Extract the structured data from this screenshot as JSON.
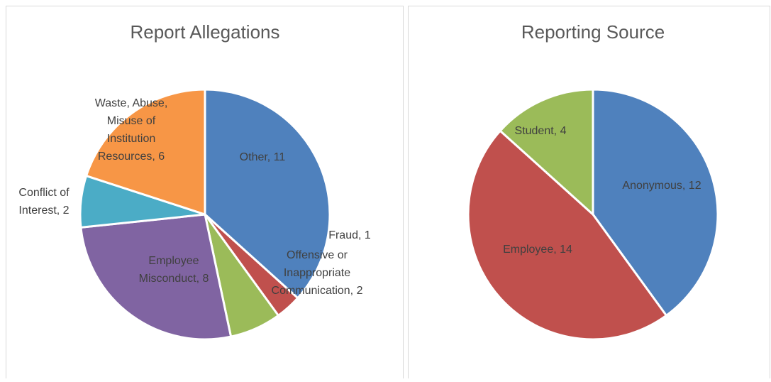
{
  "chart_data": [
    {
      "type": "pie",
      "title": "Report Allegations",
      "values": [
        11,
        1,
        2,
        8,
        2,
        6
      ],
      "value_labels": [
        "Other, 11",
        "Fraud, 1",
        "Offensive or Inappropriate Communication, 2",
        "Employee Misconduct, 8",
        "Conflict of Interest, 2",
        "Waste, Abuse, Misuse of Institution Resources, 6"
      ],
      "colors": [
        "#4f81bd",
        "#c0504d",
        "#9bbb59",
        "#8064a2",
        "#4bacc6",
        "#f79646"
      ]
    },
    {
      "type": "pie",
      "title": "Reporting Source",
      "values": [
        12,
        14,
        4
      ],
      "value_labels": [
        "Anonymous, 12",
        "Employee, 14",
        "Student, 4"
      ],
      "colors": [
        "#4f81bd",
        "#c0504d",
        "#9bbb59"
      ]
    }
  ]
}
